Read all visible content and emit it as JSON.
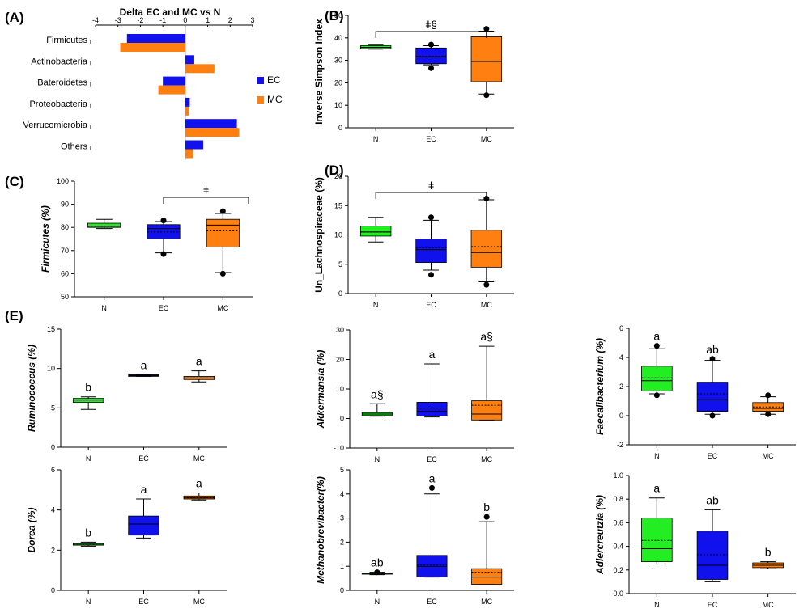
{
  "colors": {
    "N": "#22ee22",
    "EC": "#1111ee",
    "MC": "#ff8010"
  },
  "chart_data": [
    {
      "id": "A",
      "panel_label": "(A)",
      "type": "bar",
      "title": "Delta EC and MC vs N",
      "categories": [
        "Firmicutes",
        "Actinobacteria",
        "Bateroidetes",
        "Proteobacteria",
        "Verrucomicrobia",
        "Others"
      ],
      "series": [
        {
          "name": "EC",
          "values": [
            -2.6,
            0.4,
            -1.0,
            0.2,
            2.3,
            0.8
          ]
        },
        {
          "name": "MC",
          "values": [
            -2.9,
            1.3,
            -1.2,
            0.15,
            2.4,
            0.35
          ]
        }
      ],
      "xlim": [
        -4,
        3
      ],
      "xticks": [
        "-4",
        "-3",
        "-2",
        "-1",
        "0",
        "1",
        "2",
        "3"
      ]
    },
    {
      "id": "B",
      "panel_label": "(B)",
      "type": "box",
      "ylabel": "Inverse Simpson Index",
      "ylim": [
        0,
        50
      ],
      "yticks": [
        "0",
        "10",
        "20",
        "30",
        "40",
        "50"
      ],
      "groups": [
        {
          "name": "N",
          "whisker_low": 35,
          "q1": 35.2,
          "median": 35.8,
          "mean": 35.8,
          "q3": 36.5,
          "whisker_high": 36.8,
          "outliers": []
        },
        {
          "name": "EC",
          "whisker_low": 28,
          "q1": 28.5,
          "median": 31.5,
          "mean": 31.8,
          "q3": 35.5,
          "whisker_high": 36.5,
          "outliers": [
            26.5,
            37
          ]
        },
        {
          "name": "MC",
          "whisker_low": 15,
          "q1": 20.5,
          "median": 29.5,
          "mean": 29.5,
          "q3": 40.5,
          "whisker_high": 43,
          "outliers": [
            14.5,
            44
          ]
        }
      ],
      "significance": [
        {
          "from": "N",
          "to": "MC",
          "label": "ǂ§"
        }
      ]
    },
    {
      "id": "C",
      "panel_label": "(C)",
      "type": "box",
      "ylabel": "Firmicutes (%)",
      "ylim": [
        50,
        100
      ],
      "yticks": [
        "50",
        "60",
        "70",
        "80",
        "90",
        "100"
      ],
      "groups": [
        {
          "name": "N",
          "whisker_low": 79.5,
          "q1": 80,
          "median": 80.5,
          "mean": 80.5,
          "q3": 81.8,
          "whisker_high": 83.5,
          "outliers": []
        },
        {
          "name": "EC",
          "whisker_low": 69,
          "q1": 75,
          "median": 79.5,
          "mean": 78,
          "q3": 81.2,
          "whisker_high": 82.5,
          "outliers": [
            68.5,
            83
          ]
        },
        {
          "name": "MC",
          "whisker_low": 60.5,
          "q1": 71.5,
          "median": 81,
          "mean": 78.5,
          "q3": 83.5,
          "whisker_high": 86,
          "outliers": [
            60,
            87
          ]
        }
      ],
      "significance": [
        {
          "from": "EC",
          "to": "end",
          "label": "ǂ"
        }
      ]
    },
    {
      "id": "D",
      "panel_label": "(D)",
      "type": "box",
      "ylabel": "Un_Lachnospiraceae (%)",
      "ylim": [
        0,
        20
      ],
      "yticks": [
        "0",
        "5",
        "10",
        "15",
        "20"
      ],
      "groups": [
        {
          "name": "N",
          "whisker_low": 8.8,
          "q1": 9.8,
          "median": 10.5,
          "mean": 10.5,
          "q3": 11.5,
          "whisker_high": 13,
          "outliers": []
        },
        {
          "name": "EC",
          "whisker_low": 4,
          "q1": 5.3,
          "median": 7.5,
          "mean": 7.8,
          "q3": 9.3,
          "whisker_high": 12.5,
          "outliers": [
            3.2,
            13
          ]
        },
        {
          "name": "MC",
          "whisker_low": 2,
          "q1": 4.5,
          "median": 7,
          "mean": 8,
          "q3": 10.8,
          "whisker_high": 16,
          "outliers": [
            1.5,
            16.2
          ]
        }
      ],
      "significance": [
        {
          "from": "N",
          "to": "MC",
          "label": "ǂ"
        }
      ]
    },
    {
      "id": "E1",
      "panel_label": "(E)",
      "type": "box",
      "ylabel": "Ruminococcus (%)",
      "ylim": [
        0,
        15
      ],
      "yticks": [
        "0",
        "5",
        "10",
        "15"
      ],
      "groups": [
        {
          "name": "N",
          "whisker_low": 4.8,
          "q1": 5.7,
          "median": 6,
          "mean": 6,
          "q3": 6.2,
          "whisker_high": 6.4,
          "outliers": [],
          "letter": "b"
        },
        {
          "name": "EC",
          "whisker_low": 9,
          "q1": 9,
          "median": 9.1,
          "mean": 9.1,
          "q3": 9.2,
          "whisker_high": 9.2,
          "outliers": [],
          "letter": "a"
        },
        {
          "name": "MC",
          "whisker_low": 8.3,
          "q1": 8.6,
          "median": 8.8,
          "mean": 8.8,
          "q3": 9,
          "whisker_high": 9.7,
          "outliers": [],
          "letter": "a"
        }
      ]
    },
    {
      "id": "E2",
      "panel_label": "",
      "type": "box",
      "ylabel": "Akkermansia (%)",
      "ylim": [
        -10,
        30
      ],
      "yticks": [
        "-10",
        "0",
        "10",
        "20",
        "30"
      ],
      "groups": [
        {
          "name": "N",
          "whisker_low": 0.8,
          "q1": 1,
          "median": 1.5,
          "mean": 1.5,
          "q3": 2,
          "whisker_high": 5,
          "outliers": [],
          "letter": "a§"
        },
        {
          "name": "EC",
          "whisker_low": 0.5,
          "q1": 0.8,
          "median": 2.5,
          "mean": 3.5,
          "q3": 5.5,
          "whisker_high": 18.5,
          "outliers": [],
          "letter": "a"
        },
        {
          "name": "MC",
          "whisker_low": -0.5,
          "q1": -0.5,
          "median": 1.5,
          "mean": 4.5,
          "q3": 6,
          "whisker_high": 24.5,
          "outliers": [],
          "letter": "a§"
        }
      ]
    },
    {
      "id": "E3",
      "panel_label": "",
      "type": "box",
      "ylabel": "Faecalibacterium (%)",
      "ylim": [
        -2,
        6
      ],
      "yticks": [
        "-2",
        "0",
        "2",
        "4",
        "6"
      ],
      "groups": [
        {
          "name": "N",
          "whisker_low": 1.5,
          "q1": 1.7,
          "median": 2.4,
          "mean": 2.6,
          "q3": 3.4,
          "whisker_high": 4.6,
          "outliers": [
            1.4,
            4.8
          ],
          "letter": "a"
        },
        {
          "name": "EC",
          "whisker_low": 0.1,
          "q1": 0.3,
          "median": 1.1,
          "mean": 1.5,
          "q3": 2.3,
          "whisker_high": 3.8,
          "outliers": [
            0,
            3.9
          ],
          "letter": "ab"
        },
        {
          "name": "MC",
          "whisker_low": 0.1,
          "q1": 0.3,
          "median": 0.5,
          "mean": 0.6,
          "q3": 0.9,
          "whisker_high": 1.3,
          "outliers": [
            0.1,
            1.4
          ],
          "letter": ""
        }
      ]
    },
    {
      "id": "E4",
      "panel_label": "",
      "type": "box",
      "ylabel": "Dorea (%)",
      "ylim": [
        0,
        6
      ],
      "yticks": [
        "0",
        "2",
        "4",
        "6"
      ],
      "groups": [
        {
          "name": "N",
          "whisker_low": 2.2,
          "q1": 2.25,
          "median": 2.3,
          "mean": 2.3,
          "q3": 2.35,
          "whisker_high": 2.4,
          "outliers": [],
          "letter": "b"
        },
        {
          "name": "EC",
          "whisker_low": 2.6,
          "q1": 2.75,
          "median": 3.3,
          "mean": 3.3,
          "q3": 3.7,
          "whisker_high": 4.55,
          "outliers": [],
          "letter": "a"
        },
        {
          "name": "MC",
          "whisker_low": 4.5,
          "q1": 4.55,
          "median": 4.6,
          "mean": 4.62,
          "q3": 4.7,
          "whisker_high": 4.85,
          "outliers": [],
          "letter": "a"
        }
      ]
    },
    {
      "id": "E5",
      "panel_label": "",
      "type": "box",
      "ylabel": "Methanobrevibacter(%)",
      "ylim": [
        0,
        5
      ],
      "yticks": [
        "0",
        "1",
        "2",
        "3",
        "4",
        "5"
      ],
      "groups": [
        {
          "name": "N",
          "whisker_low": 0.65,
          "q1": 0.68,
          "median": 0.7,
          "mean": 0.7,
          "q3": 0.72,
          "whisker_high": 0.75,
          "outliers": [
            0.75
          ],
          "letter": "ab"
        },
        {
          "name": "EC",
          "whisker_low": 0.55,
          "q1": 0.55,
          "median": 1,
          "mean": 1.05,
          "q3": 1.45,
          "whisker_high": 4,
          "outliers": [
            4.25
          ],
          "letter": "a"
        },
        {
          "name": "MC",
          "whisker_low": 0.25,
          "q1": 0.25,
          "median": 0.55,
          "mean": 0.75,
          "q3": 0.9,
          "whisker_high": 2.85,
          "outliers": [
            3.05
          ],
          "letter": "b"
        }
      ]
    },
    {
      "id": "E6",
      "panel_label": "",
      "type": "box",
      "ylabel": "Adlercreutzia (%)",
      "ylim": [
        0,
        1
      ],
      "yticks": [
        "0.0",
        "0.2",
        "0.4",
        "0.6",
        "0.8",
        "1.0"
      ],
      "groups": [
        {
          "name": "N",
          "whisker_low": 0.25,
          "q1": 0.27,
          "median": 0.38,
          "mean": 0.45,
          "q3": 0.64,
          "whisker_high": 0.81,
          "outliers": [],
          "letter": "a"
        },
        {
          "name": "EC",
          "whisker_low": 0.1,
          "q1": 0.12,
          "median": 0.24,
          "mean": 0.33,
          "q3": 0.53,
          "whisker_high": 0.71,
          "outliers": [],
          "letter": "ab"
        },
        {
          "name": "MC",
          "whisker_low": 0.21,
          "q1": 0.22,
          "median": 0.24,
          "mean": 0.24,
          "q3": 0.26,
          "whisker_high": 0.27,
          "outliers": [],
          "letter": "b"
        }
      ]
    }
  ]
}
